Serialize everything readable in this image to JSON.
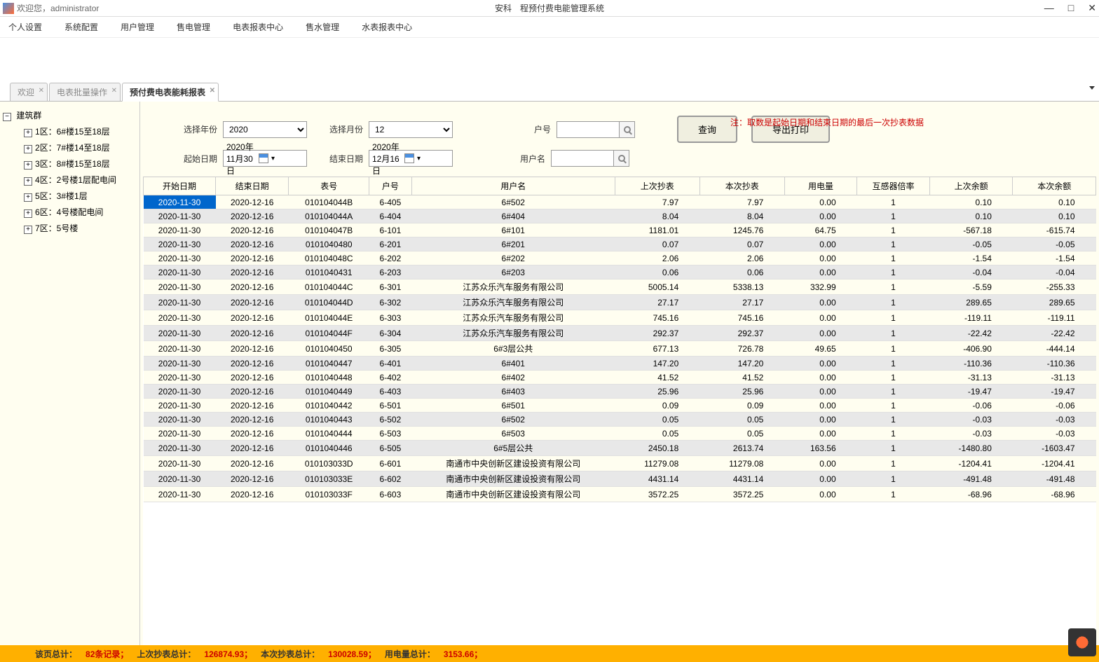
{
  "titleBar": {
    "welcome": "欢迎您，administrator",
    "appTitle": "安科　程预付费电能管理系统"
  },
  "menuBar": {
    "items": [
      "个人设置",
      "系统配置",
      "用户管理",
      "售电管理",
      "电表报表中心",
      "售水管理",
      "水表报表中心"
    ]
  },
  "tabs": [
    {
      "label": "欢迎",
      "active": false
    },
    {
      "label": "电表批量操作",
      "active": false
    },
    {
      "label": "预付费电表能耗报表",
      "active": true
    }
  ],
  "tree": {
    "root": {
      "label": "建筑群",
      "expanded": true
    },
    "children": [
      {
        "label": "1区：6#楼15至18层"
      },
      {
        "label": "2区：7#楼14至18层"
      },
      {
        "label": "3区：8#楼15至18层"
      },
      {
        "label": "4区：2号楼1层配电间"
      },
      {
        "label": "5区：3#楼1层"
      },
      {
        "label": "6区：4号楼配电间"
      },
      {
        "label": "7区：5号楼"
      }
    ]
  },
  "filters": {
    "yearLabel": "选择年份",
    "yearValue": "2020",
    "monthLabel": "选择月份",
    "monthValue": "12",
    "accountLabel": "户号",
    "accountValue": "",
    "startDateLabel": "起始日期",
    "startDateValue": "2020年11月30日",
    "endDateLabel": "结束日期",
    "endDateValue": "2020年12月16日",
    "userNameLabel": "用户名",
    "userNameValue": "",
    "note": "注：取数是起始日期和结束日期的最后一次抄表数据",
    "queryBtn": "查询",
    "exportBtn": "导出打印"
  },
  "table": {
    "columns": [
      "开始日期",
      "结束日期",
      "表号",
      "户号",
      "用户名",
      "上次抄表",
      "本次抄表",
      "用电量",
      "互感器倍率",
      "上次余额",
      "本次余额"
    ],
    "rows": [
      [
        "2020-11-30",
        "2020-12-16",
        "010104044B",
        "6-405",
        "6#502",
        "7.97",
        "7.97",
        "0.00",
        "1",
        "0.10",
        "0.10"
      ],
      [
        "2020-11-30",
        "2020-12-16",
        "010104044A",
        "6-404",
        "6#404",
        "8.04",
        "8.04",
        "0.00",
        "1",
        "0.10",
        "0.10"
      ],
      [
        "2020-11-30",
        "2020-12-16",
        "010104047B",
        "6-101",
        "6#101",
        "1181.01",
        "1245.76",
        "64.75",
        "1",
        "-567.18",
        "-615.74"
      ],
      [
        "2020-11-30",
        "2020-12-16",
        "0101040480",
        "6-201",
        "6#201",
        "0.07",
        "0.07",
        "0.00",
        "1",
        "-0.05",
        "-0.05"
      ],
      [
        "2020-11-30",
        "2020-12-16",
        "010104048C",
        "6-202",
        "6#202",
        "2.06",
        "2.06",
        "0.00",
        "1",
        "-1.54",
        "-1.54"
      ],
      [
        "2020-11-30",
        "2020-12-16",
        "0101040431",
        "6-203",
        "6#203",
        "0.06",
        "0.06",
        "0.00",
        "1",
        "-0.04",
        "-0.04"
      ],
      [
        "2020-11-30",
        "2020-12-16",
        "010104044C",
        "6-301",
        "江苏众乐汽车服务有限公司",
        "5005.14",
        "5338.13",
        "332.99",
        "1",
        "-5.59",
        "-255.33"
      ],
      [
        "2020-11-30",
        "2020-12-16",
        "010104044D",
        "6-302",
        "江苏众乐汽车服务有限公司",
        "27.17",
        "27.17",
        "0.00",
        "1",
        "289.65",
        "289.65"
      ],
      [
        "2020-11-30",
        "2020-12-16",
        "010104044E",
        "6-303",
        "江苏众乐汽车服务有限公司",
        "745.16",
        "745.16",
        "0.00",
        "1",
        "-119.11",
        "-119.11"
      ],
      [
        "2020-11-30",
        "2020-12-16",
        "010104044F",
        "6-304",
        "江苏众乐汽车服务有限公司",
        "292.37",
        "292.37",
        "0.00",
        "1",
        "-22.42",
        "-22.42"
      ],
      [
        "2020-11-30",
        "2020-12-16",
        "0101040450",
        "6-305",
        "6#3层公共",
        "677.13",
        "726.78",
        "49.65",
        "1",
        "-406.90",
        "-444.14"
      ],
      [
        "2020-11-30",
        "2020-12-16",
        "0101040447",
        "6-401",
        "6#401",
        "147.20",
        "147.20",
        "0.00",
        "1",
        "-110.36",
        "-110.36"
      ],
      [
        "2020-11-30",
        "2020-12-16",
        "0101040448",
        "6-402",
        "6#402",
        "41.52",
        "41.52",
        "0.00",
        "1",
        "-31.13",
        "-31.13"
      ],
      [
        "2020-11-30",
        "2020-12-16",
        "0101040449",
        "6-403",
        "6#403",
        "25.96",
        "25.96",
        "0.00",
        "1",
        "-19.47",
        "-19.47"
      ],
      [
        "2020-11-30",
        "2020-12-16",
        "0101040442",
        "6-501",
        "6#501",
        "0.09",
        "0.09",
        "0.00",
        "1",
        "-0.06",
        "-0.06"
      ],
      [
        "2020-11-30",
        "2020-12-16",
        "0101040443",
        "6-502",
        "6#502",
        "0.05",
        "0.05",
        "0.00",
        "1",
        "-0.03",
        "-0.03"
      ],
      [
        "2020-11-30",
        "2020-12-16",
        "0101040444",
        "6-503",
        "6#503",
        "0.05",
        "0.05",
        "0.00",
        "1",
        "-0.03",
        "-0.03"
      ],
      [
        "2020-11-30",
        "2020-12-16",
        "0101040446",
        "6-505",
        "6#5层公共",
        "2450.18",
        "2613.74",
        "163.56",
        "1",
        "-1480.80",
        "-1603.47"
      ],
      [
        "2020-11-30",
        "2020-12-16",
        "010103033D",
        "6-601",
        "南通市中央创新区建设投资有限公司",
        "11279.08",
        "11279.08",
        "0.00",
        "1",
        "-1204.41",
        "-1204.41"
      ],
      [
        "2020-11-30",
        "2020-12-16",
        "010103033E",
        "6-602",
        "南通市中央创新区建设投资有限公司",
        "4431.14",
        "4431.14",
        "0.00",
        "1",
        "-491.48",
        "-491.48"
      ],
      [
        "2020-11-30",
        "2020-12-16",
        "010103033F",
        "6-603",
        "南通市中央创新区建设投资有限公司",
        "3572.25",
        "3572.25",
        "0.00",
        "1",
        "-68.96",
        "-68.96"
      ]
    ]
  },
  "statusBar": {
    "pageTotalLabel": "该页总计：",
    "pageTotalVal": "82条记录；",
    "lastReadLabel": "上次抄表总计：",
    "lastReadVal": "126874.93；",
    "currReadLabel": "本次抄表总计：",
    "currReadVal": "130028.59；",
    "usageLabel": "用电量总计：",
    "usageVal": "3153.66；"
  }
}
